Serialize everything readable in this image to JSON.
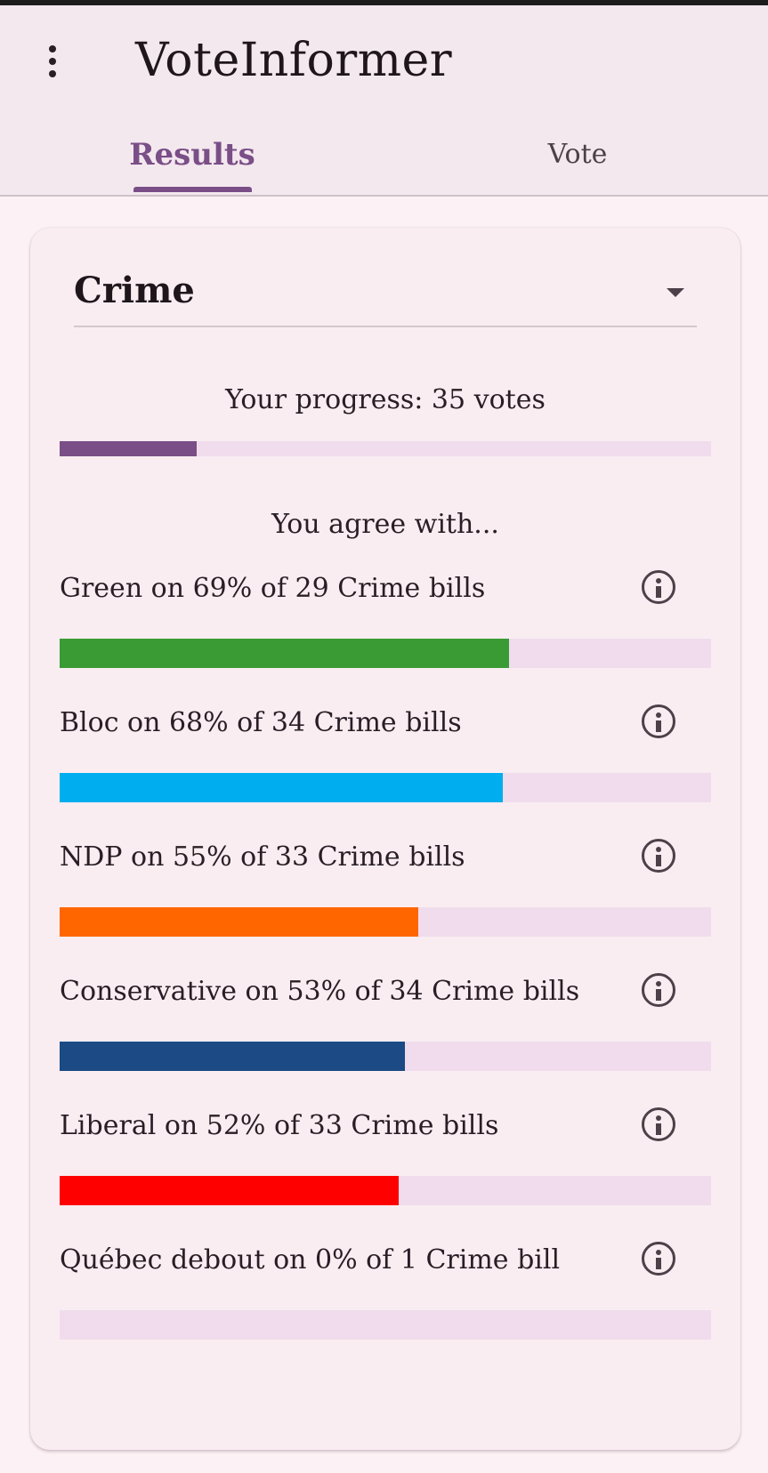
{
  "app": {
    "title": "VoteInformer"
  },
  "tabs": [
    {
      "label": "Results",
      "selected": true
    },
    {
      "label": "Vote",
      "selected": false
    }
  ],
  "colors": {
    "accent": "#7a4e87",
    "track": "#f0dcec"
  },
  "icons": {
    "menu": "more-vert-icon",
    "dropdown": "arrow-drop-down-icon",
    "info": "info-icon"
  },
  "category": {
    "selected": "Crime"
  },
  "progress": {
    "label": "Your progress: 35 votes",
    "fraction": 0.21
  },
  "agree_heading": "You agree with...",
  "parties": [
    {
      "label": "Green on 69% of 29 Crime bills",
      "percent": 69,
      "color": "#3a9b35"
    },
    {
      "label": "Bloc on 68% of 34 Crime bills",
      "percent": 68,
      "color": "#00aeef"
    },
    {
      "label": "NDP on 55% of 33 Crime bills",
      "percent": 55,
      "color": "#ff6600"
    },
    {
      "label": "Conservative on 53% of 34 Crime bills",
      "percent": 53,
      "color": "#1b4a85"
    },
    {
      "label": "Liberal on 52% of 33 Crime bills",
      "percent": 52,
      "color": "#ff0000"
    },
    {
      "label": "Québec debout on 0% of 1 Crime bill",
      "percent": 0,
      "color": "#7a4e87"
    }
  ]
}
